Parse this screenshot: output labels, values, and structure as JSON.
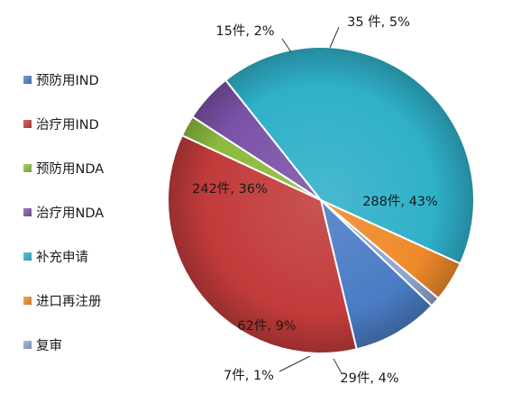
{
  "chart_data": {
    "type": "pie",
    "title": "",
    "legend_position": "left",
    "slices": [
      {
        "label": "预防用IND",
        "value": 62,
        "data_label": "62件, 9%",
        "color": "#4a7cc4"
      },
      {
        "label": "治疗用IND",
        "value": 242,
        "data_label": "242件, 36%",
        "color": "#c23b3b"
      },
      {
        "label": "预防用NDA",
        "value": 15,
        "data_label": "15件, 2%",
        "color": "#8cbb3f"
      },
      {
        "label": "治疗用NDA",
        "value": 35,
        "data_label": "35 件, 5%",
        "color": "#7b52a8"
      },
      {
        "label": "补充申请",
        "value": 288,
        "data_label": "288件, 43%",
        "color": "#2fb0c9"
      },
      {
        "label": "进口再注册",
        "value": 29,
        "data_label": "29件, 4%",
        "color": "#ef8a2b"
      },
      {
        "label": "复审",
        "value": 7,
        "data_label": "7件, 1%",
        "color": "#8ea6cf"
      }
    ]
  }
}
